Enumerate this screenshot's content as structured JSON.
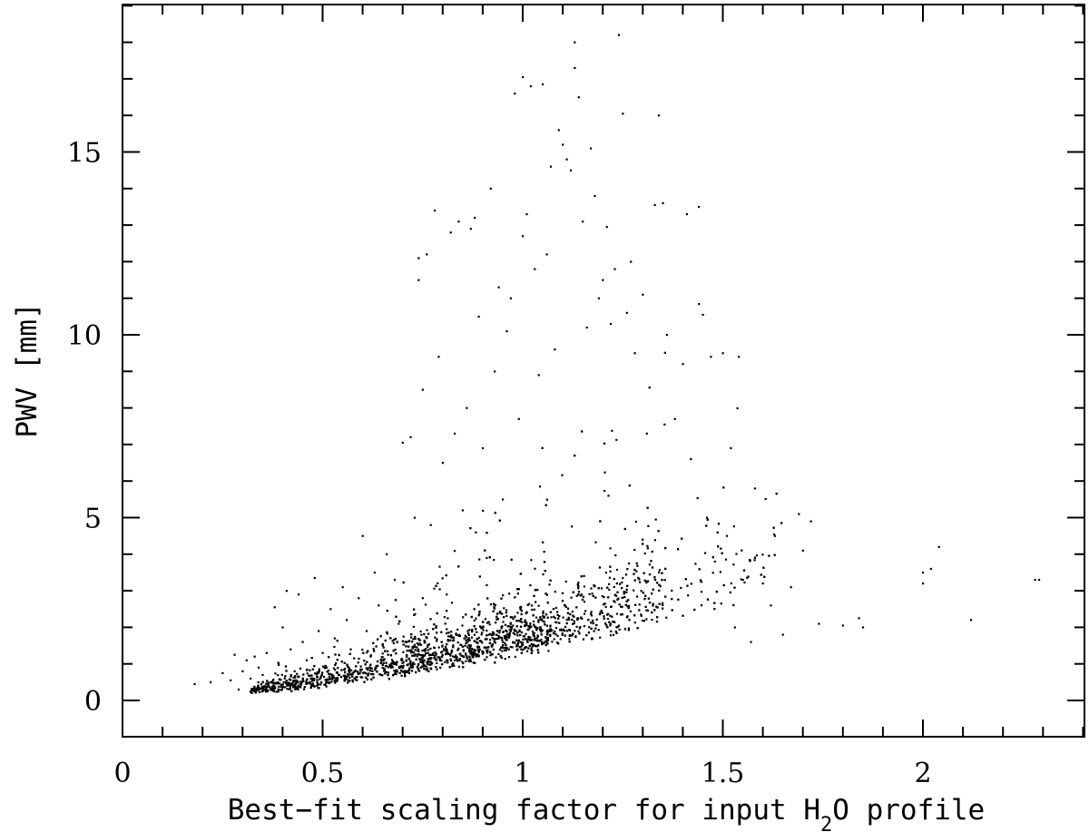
{
  "chart_data": {
    "type": "scatter",
    "title": "",
    "xlabel_parts": [
      "Best−fit scaling factor for input H",
      "2",
      "O profile"
    ],
    "ylabel": "PWV [mm]",
    "xlim": [
      0,
      2.4
    ],
    "ylim": [
      -1,
      19
    ],
    "xticks_major": [
      0,
      0.5,
      1,
      1.5,
      2
    ],
    "xtick_labels": [
      "0",
      "0.5",
      "1",
      "1.5",
      "2"
    ],
    "xticks_minor_step": 0.1,
    "yticks_major": [
      0,
      5,
      10,
      15
    ],
    "ytick_labels": [
      "0",
      "5",
      "10",
      "15"
    ],
    "yticks_minor_step": 1,
    "grid": false,
    "legend": "none",
    "point_color": "#000000",
    "points_summary": "Approximately 3000 measurements; dense cloud rising from (0.2, 0.4) to (1.3, 3), with sparse outliers up to PWV 18 mm near x 1.0-1.25 and a tail of points near x 1.8-2.3 at PWV 2-4 mm.",
    "points": [
      [
        0.18,
        0.45
      ],
      [
        0.22,
        0.5
      ],
      [
        0.25,
        0.75
      ],
      [
        0.27,
        0.55
      ],
      [
        0.28,
        1.25
      ],
      [
        0.29,
        0.3
      ],
      [
        0.3,
        0.8
      ],
      [
        0.31,
        1.1
      ],
      [
        0.32,
        0.6
      ],
      [
        0.33,
        1.2
      ],
      [
        0.34,
        0.9
      ],
      [
        0.35,
        0.7
      ],
      [
        0.36,
        1.3
      ],
      [
        0.37,
        0.5
      ],
      [
        0.38,
        2.55
      ],
      [
        0.39,
        1.0
      ],
      [
        0.4,
        2.0
      ],
      [
        0.41,
        3.0
      ],
      [
        0.42,
        1.4
      ],
      [
        0.43,
        0.8
      ],
      [
        0.44,
        2.9
      ],
      [
        0.45,
        1.6
      ],
      [
        0.46,
        1.1
      ],
      [
        0.47,
        0.6
      ],
      [
        0.48,
        3.35
      ],
      [
        0.49,
        1.9
      ],
      [
        0.5,
        1.3
      ],
      [
        0.51,
        0.9
      ],
      [
        0.52,
        2.5
      ],
      [
        0.53,
        1.7
      ],
      [
        0.54,
        0.7
      ],
      [
        0.55,
        3.1
      ],
      [
        0.56,
        2.2
      ],
      [
        0.57,
        1.4
      ],
      [
        0.58,
        0.8
      ],
      [
        0.59,
        2.8
      ],
      [
        0.6,
        4.5
      ],
      [
        0.61,
        1.9
      ],
      [
        0.62,
        1.2
      ],
      [
        0.63,
        3.5
      ],
      [
        0.64,
        2.6
      ],
      [
        0.65,
        1.5
      ],
      [
        0.66,
        4.0
      ],
      [
        0.67,
        1.0
      ],
      [
        0.68,
        3.3
      ],
      [
        0.69,
        2.1
      ],
      [
        0.7,
        7.05
      ],
      [
        0.71,
        1.6
      ],
      [
        0.72,
        7.2
      ],
      [
        0.73,
        5.0
      ],
      [
        0.74,
        12.1
      ],
      [
        0.74,
        11.5
      ],
      [
        0.75,
        2.8
      ],
      [
        0.75,
        8.5
      ],
      [
        0.76,
        12.2
      ],
      [
        0.77,
        4.8
      ],
      [
        0.78,
        13.4
      ],
      [
        0.79,
        9.4
      ],
      [
        0.8,
        6.5
      ],
      [
        0.81,
        2.9
      ],
      [
        0.82,
        12.8
      ],
      [
        0.83,
        7.3
      ],
      [
        0.84,
        13.1
      ],
      [
        0.85,
        5.2
      ],
      [
        0.86,
        8.0
      ],
      [
        0.87,
        12.9
      ],
      [
        0.88,
        13.2
      ],
      [
        0.89,
        10.5
      ],
      [
        0.9,
        6.9
      ],
      [
        0.91,
        3.9
      ],
      [
        0.92,
        14.0
      ],
      [
        0.93,
        9.0
      ],
      [
        0.94,
        11.3
      ],
      [
        0.95,
        5.5
      ],
      [
        0.96,
        10.1
      ],
      [
        0.97,
        11.0
      ],
      [
        0.98,
        16.6
      ],
      [
        0.99,
        7.7
      ],
      [
        1.0,
        17.05
      ],
      [
        1.0,
        12.7
      ],
      [
        1.01,
        13.3
      ],
      [
        1.02,
        16.8
      ],
      [
        1.03,
        11.8
      ],
      [
        1.04,
        8.9
      ],
      [
        1.05,
        16.85
      ],
      [
        1.06,
        12.2
      ],
      [
        1.07,
        14.6
      ],
      [
        1.08,
        9.6
      ],
      [
        1.09,
        15.6
      ],
      [
        1.1,
        15.2
      ],
      [
        1.11,
        14.8
      ],
      [
        1.12,
        14.5
      ],
      [
        1.13,
        18.0
      ],
      [
        1.13,
        17.3
      ],
      [
        1.14,
        16.5
      ],
      [
        1.15,
        13.1
      ],
      [
        1.16,
        10.2
      ],
      [
        1.17,
        15.1
      ],
      [
        1.18,
        13.8
      ],
      [
        1.19,
        11.0
      ],
      [
        1.2,
        11.5
      ],
      [
        1.21,
        12.95
      ],
      [
        1.22,
        10.3
      ],
      [
        1.23,
        11.8
      ],
      [
        1.24,
        18.2
      ],
      [
        1.25,
        16.05
      ],
      [
        1.26,
        10.6
      ],
      [
        1.27,
        12.0
      ],
      [
        1.28,
        9.5
      ],
      [
        1.3,
        11.1
      ],
      [
        1.31,
        7.3
      ],
      [
        1.33,
        13.55
      ],
      [
        1.34,
        16.0
      ],
      [
        1.35,
        13.6
      ],
      [
        1.36,
        10.0
      ],
      [
        1.38,
        7.7
      ],
      [
        1.4,
        9.2
      ],
      [
        1.41,
        13.3
      ],
      [
        1.42,
        6.6
      ],
      [
        1.44,
        13.5
      ],
      [
        1.45,
        10.55
      ],
      [
        1.46,
        5.0
      ],
      [
        1.47,
        9.4
      ],
      [
        1.48,
        3.8
      ],
      [
        1.5,
        9.5
      ],
      [
        1.51,
        4.5
      ],
      [
        1.52,
        6.9
      ],
      [
        1.53,
        2.0
      ],
      [
        1.54,
        9.4
      ],
      [
        1.55,
        3.3
      ],
      [
        1.57,
        1.6
      ],
      [
        1.58,
        5.8
      ],
      [
        1.6,
        3.2
      ],
      [
        1.62,
        2.6
      ],
      [
        1.63,
        4.5
      ],
      [
        1.65,
        1.8
      ],
      [
        1.67,
        3.1
      ],
      [
        1.69,
        5.1
      ],
      [
        1.7,
        4.1
      ],
      [
        1.72,
        4.9
      ],
      [
        1.74,
        2.1
      ],
      [
        1.8,
        2.05
      ],
      [
        1.84,
        2.25
      ],
      [
        1.85,
        2.0
      ],
      [
        2.0,
        3.5
      ],
      [
        2.0,
        3.2
      ],
      [
        2.02,
        3.6
      ],
      [
        2.04,
        4.2
      ],
      [
        2.12,
        2.2
      ],
      [
        2.28,
        3.3
      ],
      [
        2.29,
        3.3
      ]
    ]
  }
}
